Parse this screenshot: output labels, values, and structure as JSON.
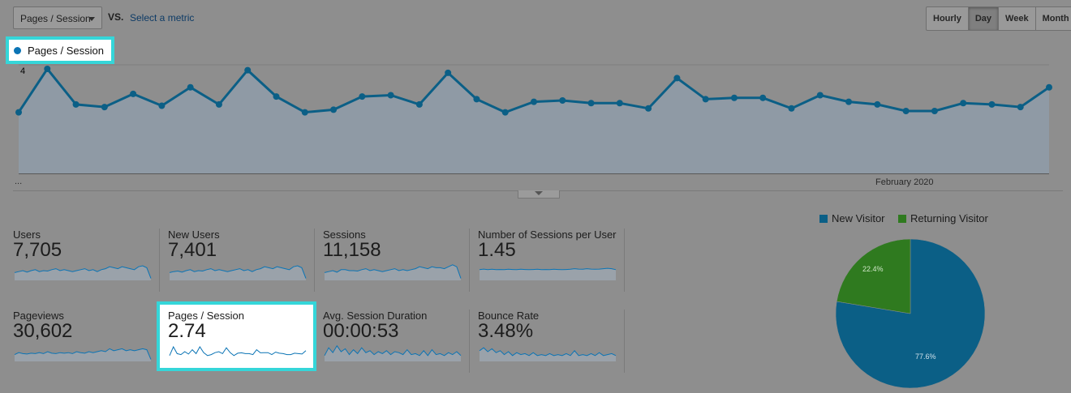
{
  "toolbar": {
    "metric_select": "Pages / Session",
    "vs_label": "VS.",
    "select_metric_link": "Select a metric",
    "ranges": [
      "Hourly",
      "Day",
      "Week",
      "Month"
    ],
    "active_range": "Day"
  },
  "chart_legend": {
    "label": "Pages / Session",
    "color": "#0b74b5"
  },
  "chart_data": {
    "type": "area",
    "series": [
      {
        "name": "Pages / Session",
        "values": [
          2.35,
          4.0,
          2.65,
          2.55,
          3.05,
          2.6,
          3.3,
          2.65,
          3.95,
          2.95,
          2.35,
          2.45,
          2.95,
          3.0,
          2.65,
          3.85,
          2.85,
          2.35,
          2.75,
          2.8,
          2.7,
          2.7,
          2.5,
          3.65,
          2.85,
          2.9,
          2.9,
          2.5,
          3.0,
          2.75,
          2.65,
          2.4,
          2.4,
          2.7,
          2.65,
          2.55,
          3.3
        ]
      }
    ],
    "yticks": [
      "4",
      "2"
    ],
    "ylim": [
      0,
      4.2
    ],
    "x_label": "February 2020",
    "x_ellipsis": "..."
  },
  "metrics": [
    {
      "name": "Users",
      "value": "7,705",
      "spark": [
        0.4,
        0.45,
        0.5,
        0.42,
        0.5,
        0.55,
        0.45,
        0.5,
        0.48,
        0.55,
        0.6,
        0.5,
        0.55,
        0.5,
        0.45,
        0.5,
        0.55,
        0.6,
        0.5,
        0.55,
        0.45,
        0.55,
        0.6,
        0.7,
        0.65,
        0.6,
        0.7,
        0.65,
        0.6,
        0.55,
        0.7,
        0.75,
        0.65,
        0.1
      ]
    },
    {
      "name": "New Users",
      "value": "7,401",
      "spark": [
        0.4,
        0.45,
        0.48,
        0.42,
        0.5,
        0.55,
        0.45,
        0.5,
        0.48,
        0.55,
        0.6,
        0.5,
        0.55,
        0.5,
        0.45,
        0.5,
        0.55,
        0.6,
        0.5,
        0.55,
        0.45,
        0.55,
        0.6,
        0.7,
        0.65,
        0.6,
        0.7,
        0.65,
        0.6,
        0.55,
        0.7,
        0.75,
        0.65,
        0.1
      ]
    },
    {
      "name": "Sessions",
      "value": "11,158",
      "spark": [
        0.4,
        0.45,
        0.5,
        0.42,
        0.55,
        0.55,
        0.5,
        0.5,
        0.48,
        0.55,
        0.6,
        0.5,
        0.55,
        0.5,
        0.45,
        0.5,
        0.55,
        0.6,
        0.5,
        0.55,
        0.5,
        0.55,
        0.6,
        0.7,
        0.65,
        0.6,
        0.7,
        0.65,
        0.65,
        0.6,
        0.7,
        0.8,
        0.7,
        0.1
      ]
    },
    {
      "name": "Number of Sessions per User",
      "value": "1.45",
      "spark": [
        0.55,
        0.58,
        0.55,
        0.57,
        0.55,
        0.56,
        0.55,
        0.57,
        0.56,
        0.55,
        0.57,
        0.56,
        0.55,
        0.56,
        0.57,
        0.55,
        0.56,
        0.55,
        0.57,
        0.56,
        0.55,
        0.56,
        0.57,
        0.6,
        0.58,
        0.57,
        0.6,
        0.58,
        0.57,
        0.58,
        0.6,
        0.62,
        0.6,
        0.55
      ]
    },
    {
      "name": "Pageviews",
      "value": "30,602",
      "spark": [
        0.35,
        0.45,
        0.4,
        0.38,
        0.42,
        0.4,
        0.45,
        0.4,
        0.5,
        0.42,
        0.4,
        0.45,
        0.42,
        0.45,
        0.4,
        0.5,
        0.45,
        0.42,
        0.5,
        0.45,
        0.5,
        0.55,
        0.5,
        0.65,
        0.55,
        0.6,
        0.65,
        0.55,
        0.6,
        0.55,
        0.6,
        0.65,
        0.6,
        0.1
      ]
    },
    {
      "name": "Pages / Session",
      "value": "2.74",
      "spark": [
        0.3,
        0.75,
        0.4,
        0.35,
        0.5,
        0.38,
        0.6,
        0.4,
        0.75,
        0.45,
        0.3,
        0.35,
        0.45,
        0.5,
        0.4,
        0.7,
        0.45,
        0.3,
        0.42,
        0.44,
        0.4,
        0.4,
        0.35,
        0.6,
        0.44,
        0.45,
        0.45,
        0.35,
        0.48,
        0.42,
        0.4,
        0.35,
        0.35,
        0.42,
        0.4,
        0.38,
        0.55
      ]
    },
    {
      "name": "Avg. Session Duration",
      "value": "00:00:53",
      "spark": [
        0.3,
        0.7,
        0.45,
        0.8,
        0.5,
        0.65,
        0.35,
        0.6,
        0.4,
        0.7,
        0.45,
        0.55,
        0.35,
        0.5,
        0.4,
        0.55,
        0.35,
        0.5,
        0.45,
        0.35,
        0.6,
        0.35,
        0.4,
        0.3,
        0.55,
        0.3,
        0.6,
        0.35,
        0.4,
        0.3,
        0.45,
        0.35,
        0.5,
        0.3
      ]
    },
    {
      "name": "Bounce Rate",
      "value": "3.48%",
      "spark": [
        0.55,
        0.7,
        0.5,
        0.65,
        0.45,
        0.55,
        0.35,
        0.5,
        0.3,
        0.45,
        0.35,
        0.4,
        0.3,
        0.45,
        0.3,
        0.35,
        0.3,
        0.4,
        0.3,
        0.35,
        0.3,
        0.4,
        0.3,
        0.55,
        0.3,
        0.35,
        0.3,
        0.4,
        0.3,
        0.45,
        0.3,
        0.35,
        0.4,
        0.3
      ]
    }
  ],
  "pie": {
    "legend": [
      {
        "label": "New Visitor",
        "color": "#0b5f86"
      },
      {
        "label": "Returning Visitor",
        "color": "#2f7a1f"
      }
    ],
    "slices": [
      {
        "label": "77.6%",
        "value": 77.6
      },
      {
        "label": "22.4%",
        "value": 22.4
      }
    ]
  }
}
